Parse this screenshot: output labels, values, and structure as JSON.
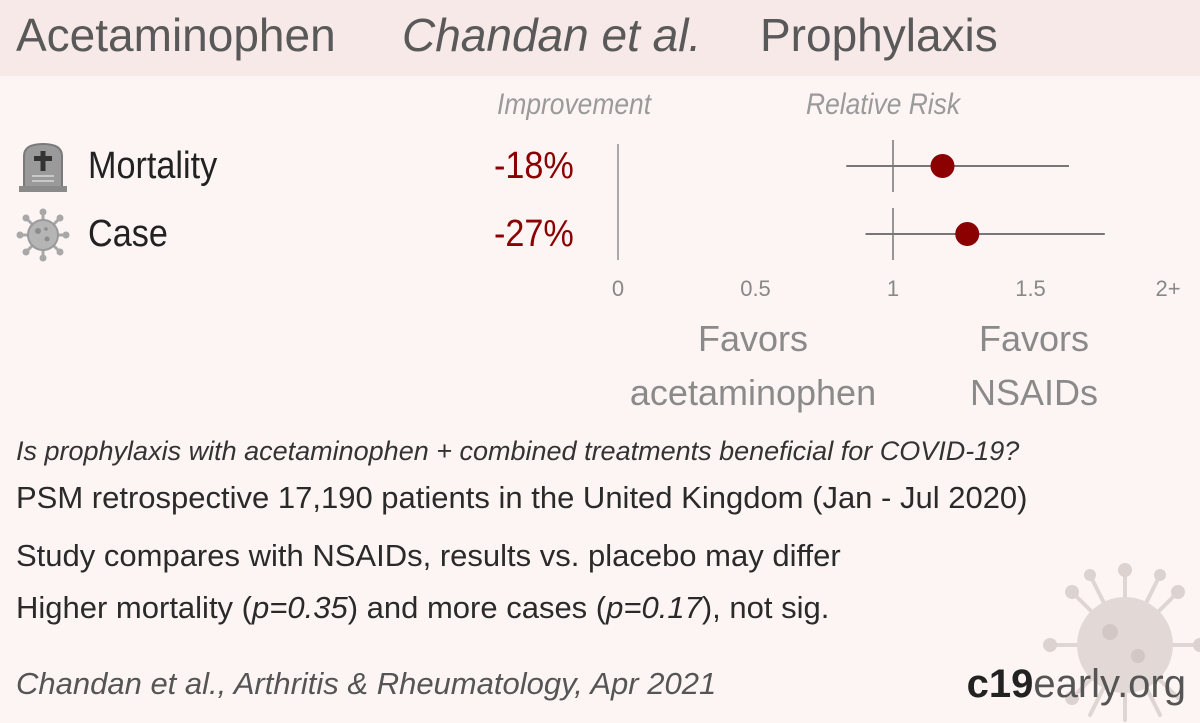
{
  "header": {
    "drug": "Acetaminophen",
    "author": "Chandan et al.",
    "study_type": "Prophylaxis"
  },
  "columns": {
    "improvement": "Improvement",
    "relative_risk": "Relative Risk"
  },
  "favors": {
    "left": [
      "Favors",
      "acetaminophen"
    ],
    "right": [
      "Favors",
      "NSAIDs"
    ]
  },
  "description": {
    "question": "Is prophylaxis with acetaminophen + combined treatments beneficial for COVID-19?",
    "design": "PSM retrospective 17,190 patients in the United Kingdom (Jan - Jul 2020)",
    "comparison": "Study compares with NSAIDs, results vs. placebo may differ",
    "result_prefix": "Higher mortality (",
    "result_p1": "p=0.35",
    "result_mid": ") and more cases (",
    "result_p2": "p=0.17",
    "result_suffix": "), not sig."
  },
  "citation": "Chandan et al., Arthritis & Rheumatology, Apr 2021",
  "brand": {
    "bold": "c19",
    "rest": "early",
    "suffix": ".org"
  },
  "colors": {
    "accent": "#8b0000",
    "header_bg": "#f7e9e7",
    "bg": "#fdf5f4"
  },
  "chart_data": {
    "type": "forest",
    "x_axis": {
      "ticks": [
        0,
        0.5,
        1,
        1.5,
        2
      ],
      "tick_labels": [
        "0",
        "0.5",
        "1",
        "1.5",
        "2+"
      ],
      "xlim": [
        0,
        2
      ]
    },
    "rows": [
      {
        "outcome": "Mortality",
        "icon": "tombstone-icon",
        "improvement": "-18%",
        "rr": 1.18,
        "ci_low": 0.83,
        "ci_high": 1.64
      },
      {
        "outcome": "Case",
        "icon": "virus-icon",
        "improvement": "-27%",
        "rr": 1.27,
        "ci_low": 0.9,
        "ci_high": 1.77
      }
    ],
    "reference_line": 1
  }
}
